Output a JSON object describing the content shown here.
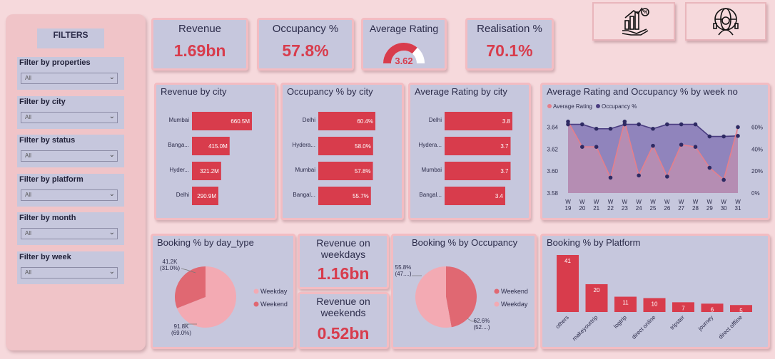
{
  "filters": {
    "title": "FILTERS",
    "items": [
      {
        "label": "Filter by properties",
        "value": "All"
      },
      {
        "label": "Filter by city",
        "value": "All"
      },
      {
        "label": "Filter by status",
        "value": "All"
      },
      {
        "label": "Filter by platform",
        "value": "All"
      },
      {
        "label": "Filter by month",
        "value": "All"
      },
      {
        "label": "Filter by week",
        "value": "All"
      }
    ]
  },
  "kpis": {
    "revenue": {
      "title": "Revenue",
      "value": "1.69bn"
    },
    "occupancy": {
      "title": "Occupancy %",
      "value": "57.8%"
    },
    "rating": {
      "title": "Average Rating",
      "value": "3.62",
      "fraction": 0.724
    },
    "realisation": {
      "title": "Realisation %",
      "value": "70.1%"
    },
    "weekday_revenue": {
      "title": "Revenue on weekdays",
      "value": "1.16bn"
    },
    "weekend_revenue": {
      "title": "Revenue on weekends",
      "value": "0.52bn"
    }
  },
  "icons": [
    "finance-growth-icon",
    "global-support-icon"
  ],
  "colors": {
    "accent": "#d83c4c",
    "panel": "#c6c7dd",
    "background": "#f6d9dc",
    "pie_dark": "#e06872",
    "pie_light": "#f3aab3",
    "occupancy_line": "#4a3d80"
  },
  "chart_data": [
    {
      "type": "bar",
      "title": "Revenue by city",
      "categories": [
        "Mumbai",
        "Banga...",
        "Hyder...",
        "Delhi"
      ],
      "values": [
        660.5,
        415.0,
        321.2,
        290.9
      ],
      "labels": [
        "660.5M",
        "415.0M",
        "321.2M",
        "290.9M"
      ],
      "orientation": "horizontal"
    },
    {
      "type": "bar",
      "title": "Occupancy % by city",
      "categories": [
        "Delhi",
        "Hydera...",
        "Mumbai",
        "Bangal..."
      ],
      "values": [
        60.4,
        58.0,
        57.8,
        55.7
      ],
      "labels": [
        "60.4%",
        "58.0%",
        "57.8%",
        "55.7%"
      ],
      "orientation": "horizontal"
    },
    {
      "type": "bar",
      "title": "Average Rating by city",
      "categories": [
        "Delhi",
        "Hydera...",
        "Mumbai",
        "Bangal..."
      ],
      "values": [
        3.8,
        3.7,
        3.7,
        3.4
      ],
      "labels": [
        "3.8",
        "3.7",
        "3.7",
        "3.4"
      ],
      "orientation": "horizontal"
    },
    {
      "type": "line",
      "title": "Average Rating and Occupancy % by week no",
      "x": [
        "W 19",
        "W 20",
        "W 21",
        "W 22",
        "W 23",
        "W 24",
        "W 25",
        "W 26",
        "W 27",
        "W 28",
        "W 29",
        "W 30",
        "W 31"
      ],
      "series": [
        {
          "name": "Average Rating",
          "axis": "left",
          "values": [
            3.645,
            3.622,
            3.622,
            3.594,
            3.645,
            3.596,
            3.623,
            3.595,
            3.624,
            3.622,
            3.603,
            3.592,
            3.64
          ]
        },
        {
          "name": "Occupancy %",
          "axis": "right",
          "values": [
            62.5,
            62.5,
            58.5,
            58.5,
            62.5,
            62.5,
            58.5,
            62.5,
            62.5,
            62.5,
            51.5,
            51.5,
            52
          ]
        }
      ],
      "y_left": {
        "ticks": [
          "3.58",
          "3.60",
          "3.62",
          "3.64"
        ],
        "range": [
          3.58,
          3.65
        ]
      },
      "y_right": {
        "ticks": [
          "0%",
          "20%",
          "40%",
          "60%"
        ],
        "range": [
          0,
          70
        ]
      },
      "legend": "top-left"
    },
    {
      "type": "pie",
      "title": "Booking % by day_type",
      "slices": [
        {
          "name": "Weekday",
          "value": 91.8,
          "label": "91.8K",
          "pct": "(69.0%)"
        },
        {
          "name": "Weekend",
          "value": 41.2,
          "label": "41.2K",
          "pct": "(31.0%)"
        }
      ],
      "legend": "right"
    },
    {
      "type": "pie",
      "title": "Booking % by Occupancy",
      "slices": [
        {
          "name": "Weekend",
          "value": 55.8,
          "label": "55.8%",
          "pct": "(47....)"
        },
        {
          "name": "Weekday",
          "value": 62.6,
          "label": "62.6%",
          "pct": "(52....)"
        }
      ],
      "legend": "right"
    },
    {
      "type": "bar",
      "title": "Booking % by Platform",
      "categories": [
        "others",
        "makeyourtrip",
        "logtrip",
        "direct online",
        "tripster",
        "journey",
        "direct offline"
      ],
      "values": [
        41,
        20,
        11,
        10,
        7,
        6,
        5
      ],
      "labels": [
        "41",
        "20",
        "11",
        "10",
        "7",
        "6",
        "5"
      ],
      "orientation": "vertical"
    }
  ]
}
